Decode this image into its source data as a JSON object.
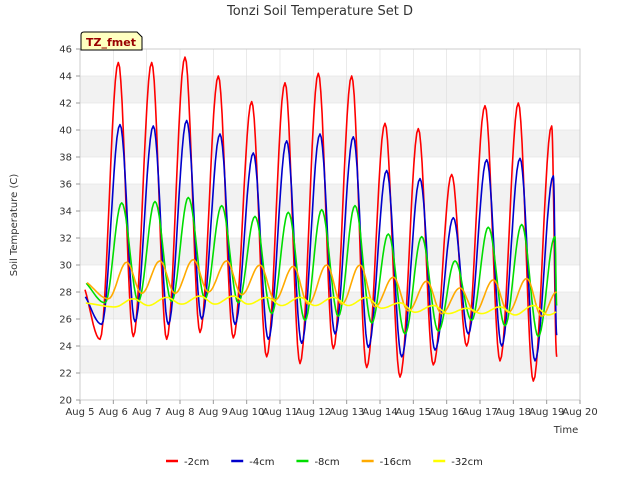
{
  "chart_data": {
    "type": "line",
    "title": "Tonzi Soil Temperature Set D",
    "xlabel": "Time",
    "ylabel": "Soil Temperature (C)",
    "badge": "TZ_fmet",
    "xlim": [
      5,
      20
    ],
    "ylim": [
      20,
      46
    ],
    "x_ticks": [
      5,
      6,
      7,
      8,
      9,
      10,
      11,
      12,
      13,
      14,
      15,
      16,
      17,
      18,
      19,
      20
    ],
    "x_tick_labels": [
      "Aug 5",
      "Aug 6",
      "Aug 7",
      "Aug 8",
      "Aug 9",
      "Aug 10",
      "Aug 11",
      "Aug 12",
      "Aug 13",
      "Aug 14",
      "Aug 15",
      "Aug 16",
      "Aug 17",
      "Aug 18",
      "Aug 19",
      "Aug 20"
    ],
    "y_ticks": [
      20,
      22,
      24,
      26,
      28,
      30,
      32,
      34,
      36,
      38,
      40,
      42,
      44,
      46
    ],
    "y_tick_labels": [
      "20",
      "22",
      "24",
      "26",
      "28",
      "30",
      "32",
      "34",
      "36",
      "38",
      "40",
      "42",
      "44",
      "46"
    ],
    "grid": true,
    "legend_position": "bottom",
    "x_start": 5.15,
    "x_end": 19.3,
    "series": [
      {
        "name": "-2cm",
        "color": "#ff0000",
        "peaks": [
          [
            5.0,
            28.8
          ],
          [
            6.15,
            45.0
          ],
          [
            7.15,
            45.0
          ],
          [
            8.15,
            45.4
          ],
          [
            9.15,
            44.0
          ],
          [
            10.15,
            42.1
          ],
          [
            11.15,
            43.5
          ],
          [
            12.15,
            44.2
          ],
          [
            13.15,
            44.0
          ],
          [
            14.15,
            40.5
          ],
          [
            15.15,
            40.1
          ],
          [
            16.15,
            36.7
          ],
          [
            17.15,
            41.8
          ],
          [
            18.15,
            42.0
          ],
          [
            19.15,
            40.3
          ]
        ],
        "troughs": [
          [
            5.6,
            24.5
          ],
          [
            6.6,
            24.7
          ],
          [
            7.6,
            24.5
          ],
          [
            8.6,
            25.0
          ],
          [
            9.6,
            24.6
          ],
          [
            10.6,
            23.2
          ],
          [
            11.6,
            22.7
          ],
          [
            12.6,
            23.8
          ],
          [
            13.6,
            22.4
          ],
          [
            14.6,
            21.7
          ],
          [
            15.6,
            22.6
          ],
          [
            16.6,
            24.0
          ],
          [
            17.6,
            22.9
          ],
          [
            18.6,
            21.4
          ],
          [
            19.3,
            23.2
          ]
        ]
      },
      {
        "name": "-4cm",
        "color": "#0000cc",
        "peaks": [
          [
            5.0,
            28.0
          ],
          [
            6.2,
            40.4
          ],
          [
            7.2,
            40.3
          ],
          [
            8.2,
            40.7
          ],
          [
            9.2,
            39.7
          ],
          [
            10.2,
            38.3
          ],
          [
            11.2,
            39.2
          ],
          [
            12.2,
            39.7
          ],
          [
            13.2,
            39.5
          ],
          [
            14.2,
            37.0
          ],
          [
            15.2,
            36.4
          ],
          [
            16.2,
            33.5
          ],
          [
            17.2,
            37.8
          ],
          [
            18.2,
            37.9
          ],
          [
            19.2,
            36.6
          ]
        ],
        "troughs": [
          [
            5.65,
            25.6
          ],
          [
            6.65,
            25.8
          ],
          [
            7.65,
            25.6
          ],
          [
            8.65,
            26.0
          ],
          [
            9.65,
            25.6
          ],
          [
            10.65,
            24.5
          ],
          [
            11.65,
            24.2
          ],
          [
            12.65,
            24.9
          ],
          [
            13.65,
            23.9
          ],
          [
            14.65,
            23.2
          ],
          [
            15.65,
            23.7
          ],
          [
            16.65,
            24.9
          ],
          [
            17.65,
            24.0
          ],
          [
            18.65,
            22.9
          ],
          [
            19.3,
            24.8
          ]
        ]
      },
      {
        "name": "-8cm",
        "color": "#00dd00",
        "peaks": [
          [
            5.0,
            28.9
          ],
          [
            6.25,
            34.6
          ],
          [
            7.25,
            34.7
          ],
          [
            8.25,
            35.0
          ],
          [
            9.25,
            34.4
          ],
          [
            10.25,
            33.6
          ],
          [
            11.25,
            33.9
          ],
          [
            12.25,
            34.1
          ],
          [
            13.25,
            34.4
          ],
          [
            14.25,
            32.3
          ],
          [
            15.25,
            32.1
          ],
          [
            16.25,
            30.3
          ],
          [
            17.25,
            32.8
          ],
          [
            18.25,
            33.0
          ],
          [
            19.25,
            32.1
          ]
        ],
        "troughs": [
          [
            5.75,
            27.2
          ],
          [
            6.75,
            27.3
          ],
          [
            7.75,
            27.3
          ],
          [
            8.75,
            27.5
          ],
          [
            9.75,
            27.2
          ],
          [
            10.75,
            26.4
          ],
          [
            11.75,
            25.9
          ],
          [
            12.75,
            26.2
          ],
          [
            13.75,
            25.7
          ],
          [
            14.75,
            24.9
          ],
          [
            15.75,
            25.1
          ],
          [
            16.75,
            25.9
          ],
          [
            17.75,
            25.5
          ],
          [
            18.75,
            24.7
          ],
          [
            19.3,
            27.0
          ]
        ]
      },
      {
        "name": "-16cm",
        "color": "#ffaa00",
        "peaks": [
          [
            5.0,
            28.9
          ],
          [
            6.4,
            30.2
          ],
          [
            7.4,
            30.3
          ],
          [
            8.4,
            30.4
          ],
          [
            9.4,
            30.3
          ],
          [
            10.4,
            30.0
          ],
          [
            11.4,
            29.9
          ],
          [
            12.4,
            30.0
          ],
          [
            13.4,
            30.0
          ],
          [
            14.4,
            29.1
          ],
          [
            15.4,
            28.8
          ],
          [
            16.4,
            28.3
          ],
          [
            17.4,
            28.9
          ],
          [
            18.4,
            29.0
          ],
          [
            19.4,
            28.5
          ]
        ],
        "troughs": [
          [
            5.85,
            27.5
          ],
          [
            6.85,
            27.9
          ],
          [
            7.85,
            27.9
          ],
          [
            8.85,
            28.0
          ],
          [
            9.85,
            27.8
          ],
          [
            10.85,
            27.4
          ],
          [
            11.85,
            27.1
          ],
          [
            12.85,
            27.1
          ],
          [
            13.85,
            26.9
          ],
          [
            14.85,
            26.6
          ],
          [
            15.85,
            26.4
          ],
          [
            16.85,
            26.5
          ],
          [
            17.85,
            26.5
          ],
          [
            18.85,
            26.2
          ],
          [
            19.3,
            28.0
          ]
        ]
      },
      {
        "name": "-32cm",
        "color": "#ffff00",
        "peaks": [
          [
            5.0,
            27.2
          ],
          [
            6.6,
            27.5
          ],
          [
            7.6,
            27.6
          ],
          [
            8.6,
            27.7
          ],
          [
            9.6,
            27.7
          ],
          [
            10.6,
            27.6
          ],
          [
            11.6,
            27.6
          ],
          [
            12.6,
            27.6
          ],
          [
            13.6,
            27.6
          ],
          [
            14.6,
            27.2
          ],
          [
            15.6,
            27.0
          ],
          [
            16.6,
            26.8
          ],
          [
            17.6,
            26.9
          ],
          [
            18.6,
            27.0
          ],
          [
            19.6,
            26.9
          ]
        ],
        "troughs": [
          [
            6.05,
            26.9
          ],
          [
            7.05,
            27.0
          ],
          [
            8.05,
            27.1
          ],
          [
            9.05,
            27.1
          ],
          [
            10.05,
            27.1
          ],
          [
            11.05,
            27.0
          ],
          [
            12.05,
            27.0
          ],
          [
            13.05,
            27.0
          ],
          [
            14.05,
            26.8
          ],
          [
            15.05,
            26.5
          ],
          [
            16.05,
            26.4
          ],
          [
            17.05,
            26.4
          ],
          [
            18.05,
            26.3
          ],
          [
            19.05,
            26.3
          ]
        ]
      }
    ]
  }
}
